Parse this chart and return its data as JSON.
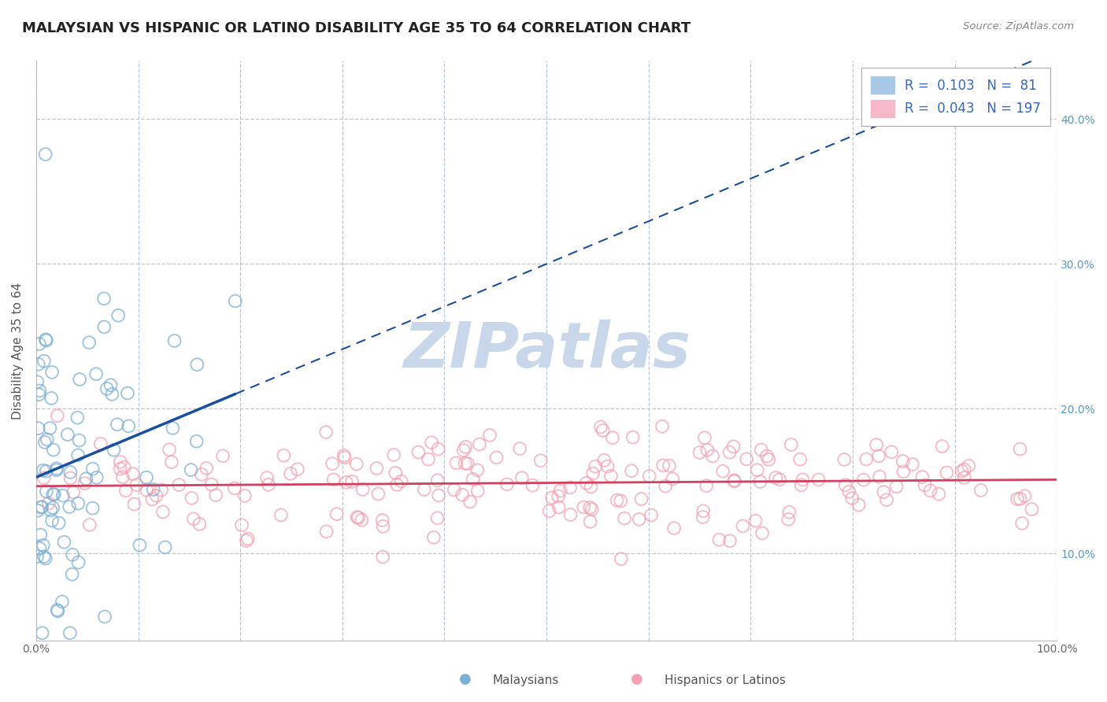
{
  "title": "MALAYSIAN VS HISPANIC OR LATINO DISABILITY AGE 35 TO 64 CORRELATION CHART",
  "source": "Source: ZipAtlas.com",
  "ylabel": "Disability Age 35 to 64",
  "xlim": [
    0,
    1.0
  ],
  "ylim": [
    0.04,
    0.44
  ],
  "xticks": [
    0.0,
    0.1,
    0.2,
    0.3,
    0.4,
    0.5,
    0.6,
    0.7,
    0.8,
    0.9,
    1.0
  ],
  "xticklabels": [
    "0.0%",
    "",
    "",
    "",
    "",
    "",
    "",
    "",
    "",
    "",
    "100.0%"
  ],
  "yticks": [
    0.1,
    0.2,
    0.3,
    0.4
  ],
  "yticklabels": [
    "10.0%",
    "20.0%",
    "30.0%",
    "40.0%"
  ],
  "blue_color": "#7bafd4",
  "pink_color": "#f4a0b0",
  "blue_line_color": "#1a4fa0",
  "pink_line_color": "#d04060",
  "grid_color": "#b8c8d8",
  "watermark": "ZIPatlas",
  "watermark_color": "#c8d8ea",
  "background_color": "#ffffff",
  "title_fontsize": 13,
  "legend_fontsize": 12,
  "axis_label_fontsize": 11,
  "tick_fontsize": 10,
  "R_blue": 0.103,
  "N_blue": 81,
  "R_pink": 0.043,
  "N_pink": 197,
  "seed_blue": 42,
  "seed_pink": 123,
  "legend_R_blue": "R =  0.103",
  "legend_N_blue": "N =  81",
  "legend_R_pink": "R =  0.043",
  "legend_N_pink": "N = 197",
  "bottom_label_malaysians": "Malaysians",
  "bottom_label_hispanics": "Hispanics or Latinos"
}
